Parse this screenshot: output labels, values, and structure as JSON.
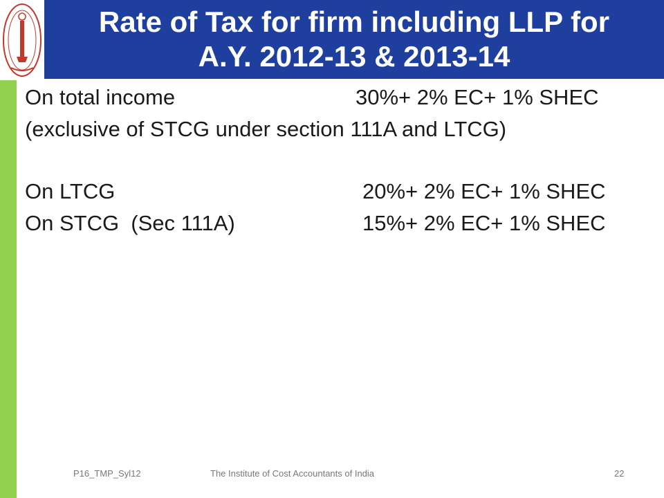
{
  "title": {
    "line1": "Rate of Tax for firm including LLP for",
    "line2": "A.Y. 2012-13 & 2013-14"
  },
  "rows": [
    {
      "label": "On total income",
      "value": "30%+ 2% EC+ 1% SHEC"
    },
    {
      "label": "(exclusive of STCG under section 111A and LTCG)"
    },
    {
      "label": "On LTCG",
      "value": "20%+ 2% EC+ 1% SHEC"
    },
    {
      "label": "On STCG  (Sec 111A)",
      "value": "15%+ 2% EC+ 1% SHEC"
    }
  ],
  "footer": {
    "code": "P16_TMP_Syl12",
    "institute": "The Institute of Cost Accountants of India",
    "page": "22"
  },
  "colors": {
    "title_bg": "#1f3f9e",
    "accent_bar": "#92d050",
    "logo": "#c0392b"
  },
  "icons": {
    "logo": "institute-emblem-icon"
  }
}
